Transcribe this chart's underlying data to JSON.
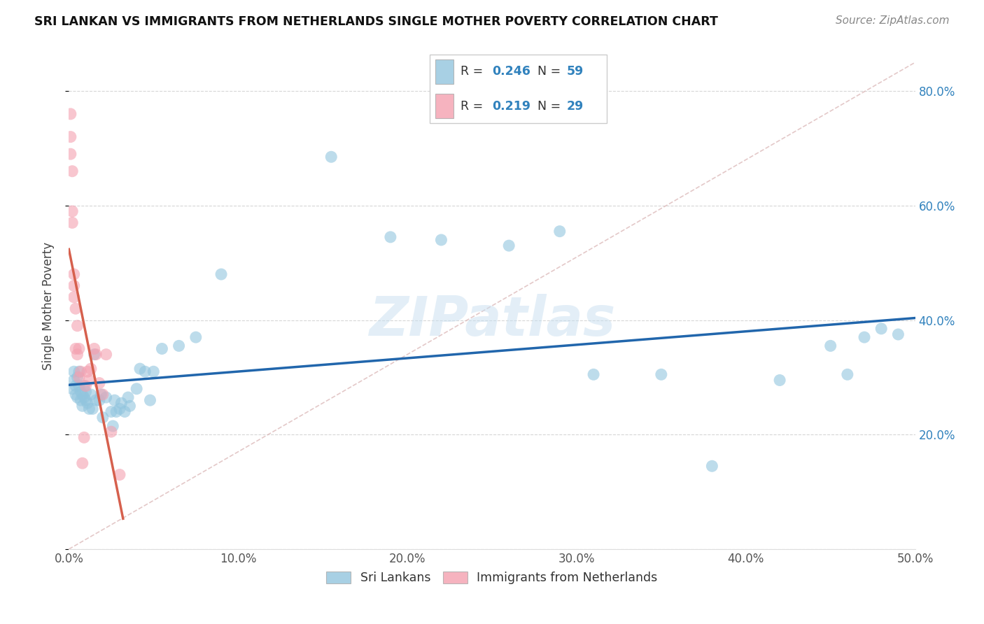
{
  "title": "SRI LANKAN VS IMMIGRANTS FROM NETHERLANDS SINGLE MOTHER POVERTY CORRELATION CHART",
  "source": "Source: ZipAtlas.com",
  "ylabel": "Single Mother Poverty",
  "blue_color": "#92c5de",
  "pink_color": "#f4a0b0",
  "blue_line_color": "#2166ac",
  "pink_line_color": "#d6604d",
  "watermark": "ZIPatlas",
  "blue_scatter_x": [
    0.002,
    0.003,
    0.003,
    0.004,
    0.004,
    0.005,
    0.005,
    0.006,
    0.006,
    0.007,
    0.007,
    0.008,
    0.008,
    0.009,
    0.009,
    0.01,
    0.01,
    0.011,
    0.012,
    0.013,
    0.014,
    0.015,
    0.016,
    0.018,
    0.019,
    0.02,
    0.022,
    0.025,
    0.026,
    0.027,
    0.028,
    0.03,
    0.031,
    0.033,
    0.035,
    0.036,
    0.04,
    0.042,
    0.045,
    0.048,
    0.05,
    0.055,
    0.065,
    0.075,
    0.09,
    0.155,
    0.19,
    0.22,
    0.26,
    0.29,
    0.31,
    0.35,
    0.38,
    0.42,
    0.45,
    0.46,
    0.47,
    0.48,
    0.49
  ],
  "blue_scatter_y": [
    0.28,
    0.295,
    0.31,
    0.27,
    0.285,
    0.265,
    0.3,
    0.31,
    0.285,
    0.275,
    0.26,
    0.27,
    0.25,
    0.285,
    0.265,
    0.26,
    0.275,
    0.255,
    0.245,
    0.27,
    0.245,
    0.34,
    0.26,
    0.26,
    0.27,
    0.23,
    0.265,
    0.24,
    0.215,
    0.26,
    0.24,
    0.245,
    0.255,
    0.24,
    0.265,
    0.25,
    0.28,
    0.315,
    0.31,
    0.26,
    0.31,
    0.35,
    0.355,
    0.37,
    0.48,
    0.685,
    0.545,
    0.54,
    0.53,
    0.555,
    0.305,
    0.305,
    0.145,
    0.295,
    0.355,
    0.305,
    0.37,
    0.385,
    0.375
  ],
  "pink_scatter_x": [
    0.001,
    0.001,
    0.001,
    0.002,
    0.002,
    0.002,
    0.003,
    0.003,
    0.003,
    0.004,
    0.004,
    0.005,
    0.005,
    0.006,
    0.006,
    0.007,
    0.008,
    0.009,
    0.01,
    0.011,
    0.012,
    0.013,
    0.015,
    0.016,
    0.018,
    0.02,
    0.022,
    0.025,
    0.03
  ],
  "pink_scatter_y": [
    0.76,
    0.72,
    0.69,
    0.66,
    0.59,
    0.57,
    0.48,
    0.46,
    0.44,
    0.42,
    0.35,
    0.34,
    0.39,
    0.3,
    0.35,
    0.31,
    0.15,
    0.195,
    0.285,
    0.31,
    0.295,
    0.315,
    0.35,
    0.34,
    0.29,
    0.27,
    0.34,
    0.205,
    0.13
  ],
  "xlim": [
    0.0,
    0.5
  ],
  "ylim": [
    0.0,
    0.85
  ],
  "xticks": [
    0.0,
    0.1,
    0.2,
    0.3,
    0.4,
    0.5
  ],
  "xtick_labels": [
    "0.0%",
    "10.0%",
    "20.0%",
    "30.0%",
    "40.0%",
    "50.0%"
  ],
  "yticks": [
    0.0,
    0.2,
    0.4,
    0.6,
    0.8
  ],
  "ytick_labels": [
    "",
    "20.0%",
    "40.0%",
    "60.0%",
    "80.0%"
  ],
  "diag_line_x": [
    0.0,
    0.5
  ],
  "diag_line_y": [
    0.0,
    0.85
  ],
  "pink_line_x_end": 0.032,
  "legend_R1": "0.246",
  "legend_N1": "59",
  "legend_R2": "0.219",
  "legend_N2": "29"
}
